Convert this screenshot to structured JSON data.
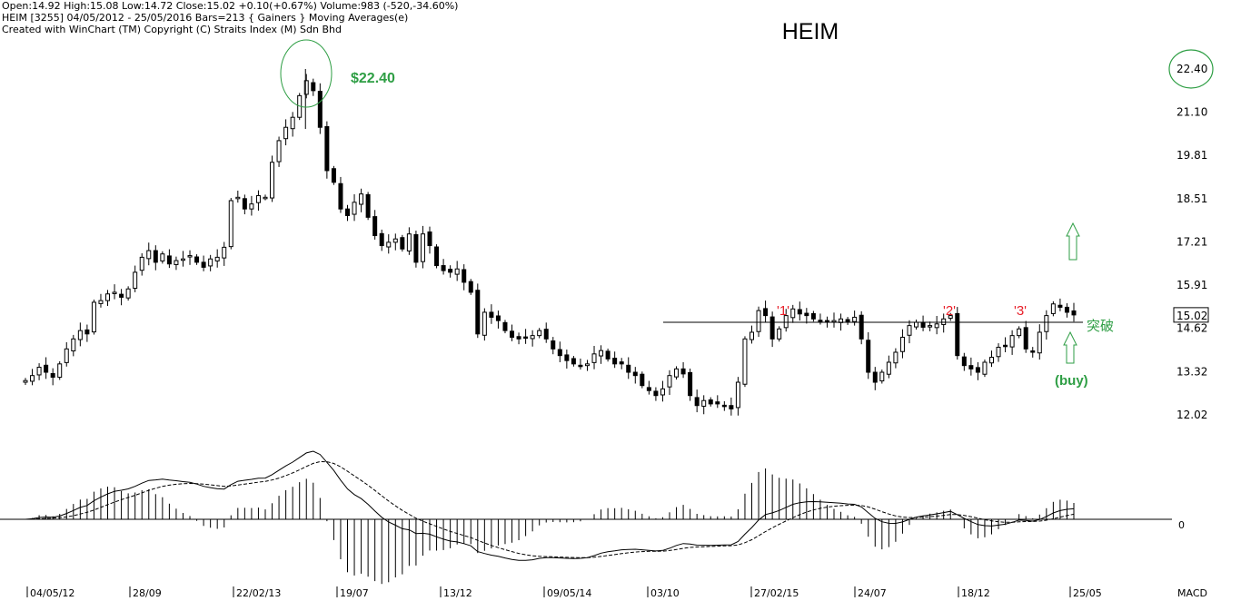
{
  "header": {
    "line1": "Open:14.92  High:15.08  Low:14.72  Close:15.02  +0.10(+0.67%)  Volume:983 (-520,-34.60%)",
    "line2": "HEIM [3255]  04/05/2012 - 25/05/2016  Bars=213  { Gainers } Moving Averages(e)",
    "line3": "Created with WinChart (TM)  Copyright (C) Straits Index (M) Sdn Bhd"
  },
  "chart_data": {
    "type": "candlestick",
    "title": "HEIM",
    "price_axis": {
      "ticks": [
        "22.40",
        "21.10",
        "19.81",
        "18.51",
        "17.21",
        "15.91",
        "14.62",
        "13.32",
        "12.02"
      ],
      "ylim": [
        11.4,
        23.0
      ],
      "current_close": "15.02"
    },
    "date_ticks": [
      "04/05/12",
      "28/09",
      "22/02/13",
      "19/07",
      "13/12",
      "09/05/14",
      "03/10",
      "27/02/15",
      "24/07",
      "18/12",
      "25/05"
    ],
    "macd_label": "MACD",
    "macd_zero_label": "0",
    "close_series_weekly": [
      13.05,
      13.2,
      13.45,
      13.3,
      13.15,
      13.55,
      14.0,
      14.3,
      14.55,
      14.45,
      15.4,
      15.45,
      15.65,
      15.7,
      15.55,
      15.8,
      16.3,
      16.75,
      16.95,
      16.6,
      16.85,
      16.55,
      16.65,
      16.7,
      16.8,
      16.6,
      16.45,
      16.7,
      16.75,
      17.05,
      18.45,
      18.55,
      18.2,
      18.35,
      18.6,
      18.55,
      19.6,
      20.25,
      20.65,
      20.95,
      21.6,
      22.05,
      21.75,
      20.65,
      19.35,
      19.0,
      18.2,
      18.0,
      18.4,
      18.65,
      17.95,
      17.4,
      17.1,
      17.2,
      17.3,
      17.0,
      17.45,
      16.6,
      17.45,
      17.1,
      16.5,
      16.35,
      16.3,
      16.4,
      16.0,
      15.7,
      14.45,
      15.1,
      14.95,
      14.85,
      14.55,
      14.35,
      14.3,
      14.35,
      14.4,
      14.55,
      14.3,
      14.0,
      13.8,
      13.65,
      13.55,
      13.5,
      13.55,
      13.85,
      13.95,
      13.7,
      13.55,
      13.55,
      13.3,
      13.2,
      12.9,
      12.75,
      12.6,
      12.8,
      13.2,
      13.4,
      13.25,
      12.6,
      12.3,
      12.45,
      12.35,
      12.35,
      12.3,
      12.2,
      13.0,
      14.3,
      14.5,
      15.15,
      15.0,
      14.3,
      14.6,
      15.0,
      15.2,
      15.05,
      15.0,
      14.9,
      14.85,
      14.8,
      14.85,
      14.9,
      14.8,
      14.95,
      14.3,
      13.3,
      13.0,
      13.3,
      13.6,
      13.9,
      14.35,
      14.7,
      14.8,
      14.65,
      14.7,
      14.75,
      14.9,
      15.0,
      13.8,
      13.5,
      13.4,
      13.3,
      13.6,
      13.75,
      14.05,
      14.1,
      14.4,
      14.6,
      14.0,
      13.9,
      14.5,
      15.0,
      15.35,
      15.25,
      15.1,
      15.02
    ]
  },
  "annotations": {
    "peak_price": "$22.40",
    "peak_axis_label": "22.40",
    "resistance_marks": [
      "'1'",
      "'2'",
      "'3'"
    ],
    "breakout_label": "突破",
    "buy_label": "(buy)"
  },
  "colors": {
    "annotation_green": "#2e9e44",
    "annotation_red": "#e8202a",
    "candle": "#000000"
  }
}
